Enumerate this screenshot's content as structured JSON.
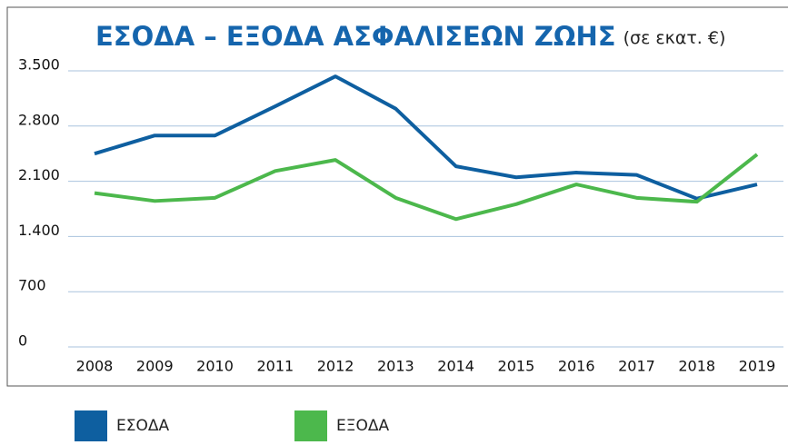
{
  "chart_data": {
    "type": "line",
    "title": "ΕΣΟΔΑ – ΕΞΟΔΑ ΑΣΦΑΛΙΣΕΩΝ ΖΩΗΣ",
    "subtitle": "(σε εκατ. €)",
    "categories": [
      "2008",
      "2009",
      "2010",
      "2011",
      "2012",
      "2013",
      "2014",
      "2015",
      "2016",
      "2017",
      "2018",
      "2019"
    ],
    "series": [
      {
        "name": "ΕΣΟΔΑ",
        "color": "#0e5fa0",
        "values": [
          2450,
          2680,
          2680,
          3050,
          3430,
          3020,
          2290,
          2150,
          2210,
          2180,
          1880,
          2060
        ]
      },
      {
        "name": "ΕΞΟΔΑ",
        "color": "#4cb84c",
        "values": [
          1950,
          1850,
          1890,
          2230,
          2370,
          1890,
          1620,
          1810,
          2060,
          1890,
          1840,
          2440
        ]
      }
    ],
    "ylim": [
      0,
      3500
    ],
    "yticks": [
      0,
      700,
      {
        "value": 1400,
        "label": "1.400"
      },
      {
        "value": 2100,
        "label": "2.100"
      },
      {
        "value": 2800,
        "label": "2.800"
      },
      {
        "value": 3500,
        "label": "3.500"
      }
    ],
    "grid": true
  }
}
